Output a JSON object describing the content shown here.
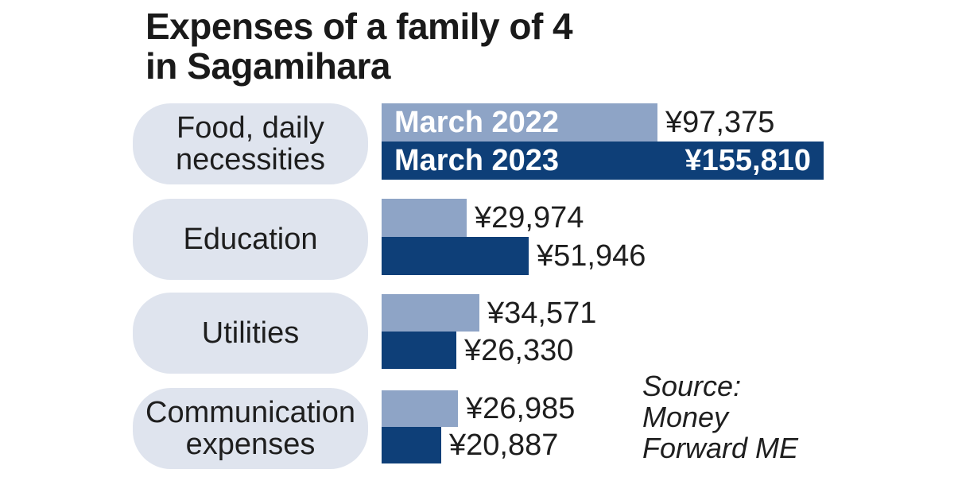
{
  "chart_data": {
    "type": "bar",
    "orientation": "horizontal",
    "title_lines": [
      "Expenses of a family of 4",
      "in Sagamihara"
    ],
    "categories": [
      [
        "Food, daily",
        "necessities"
      ],
      [
        "Education"
      ],
      [
        "Utilities"
      ],
      [
        "Communication",
        "expenses"
      ]
    ],
    "series": [
      {
        "name": "March 2022",
        "values": [
          97375,
          29974,
          34571,
          26985
        ],
        "labels": [
          "¥97,375",
          "¥29,974",
          "¥34,571",
          "¥26,985"
        ],
        "color": "#8ea4c6"
      },
      {
        "name": "March 2023",
        "values": [
          155810,
          51946,
          26330,
          20887
        ],
        "labels": [
          "¥155,810",
          "¥51,946",
          "¥26,330",
          "¥20,887"
        ],
        "color": "#0e3f78"
      }
    ],
    "legend": "inline in first group bars",
    "grid": false,
    "xlim": [
      0,
      155810
    ]
  },
  "source_lines": [
    "Source:",
    "Money",
    "Forward ME"
  ]
}
